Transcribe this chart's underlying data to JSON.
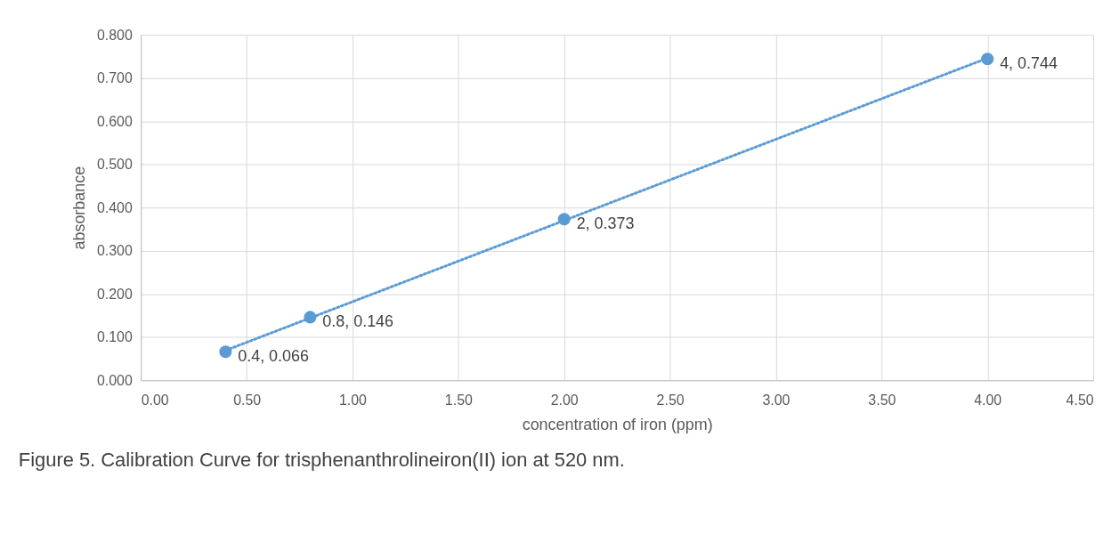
{
  "chart_data": {
    "type": "scatter",
    "xlabel": "concentration of iron (ppm)",
    "ylabel": "absorbance",
    "x": [
      0.4,
      0.8,
      2,
      4
    ],
    "series": [
      {
        "color": "#5b9bd5",
        "values": [
          0.066,
          0.146,
          0.373,
          0.744
        ],
        "value_labels": [
          "0.4, 0.066",
          "0.8, 0.146",
          "2, 0.373",
          "4, 0.744"
        ],
        "marker": "circle"
      },
      {
        "type": "line",
        "color": "#5b9bd5",
        "x": [
          0.4,
          4
        ],
        "values": [
          0.069,
          0.746
        ],
        "line_style": "dotted"
      }
    ],
    "xlim": [
      0,
      4.5
    ],
    "xticks": [
      {
        "value": 0,
        "label": "0.00"
      },
      {
        "value": 0.5,
        "label": "0.50"
      },
      {
        "value": 1,
        "label": "1.00"
      },
      {
        "value": 1.5,
        "label": "1.50"
      },
      {
        "value": 2,
        "label": "2.00"
      },
      {
        "value": 2.5,
        "label": "2.50"
      },
      {
        "value": 3,
        "label": "3.00"
      },
      {
        "value": 3.5,
        "label": "3.50"
      },
      {
        "value": 4,
        "label": "4.00"
      },
      {
        "value": 4.5,
        "label": "4.50"
      }
    ],
    "ylim": [
      0,
      0.8
    ],
    "yticks": [
      {
        "value": 0,
        "label": "0.000"
      },
      {
        "value": 0.1,
        "label": "0.100"
      },
      {
        "value": 0.2,
        "label": "0.200"
      },
      {
        "value": 0.3,
        "label": "0.300"
      },
      {
        "value": 0.4,
        "label": "0.400"
      },
      {
        "value": 0.5,
        "label": "0.500"
      },
      {
        "value": 0.6,
        "label": "0.600"
      },
      {
        "value": 0.7,
        "label": "0.700"
      },
      {
        "value": 0.8,
        "label": "0.800"
      }
    ],
    "grid": true,
    "legend": false,
    "annotations": [
      "Figure 5.  Calibration Curve for trisphenanthrolineiron(II) ion at 520 nm."
    ]
  }
}
